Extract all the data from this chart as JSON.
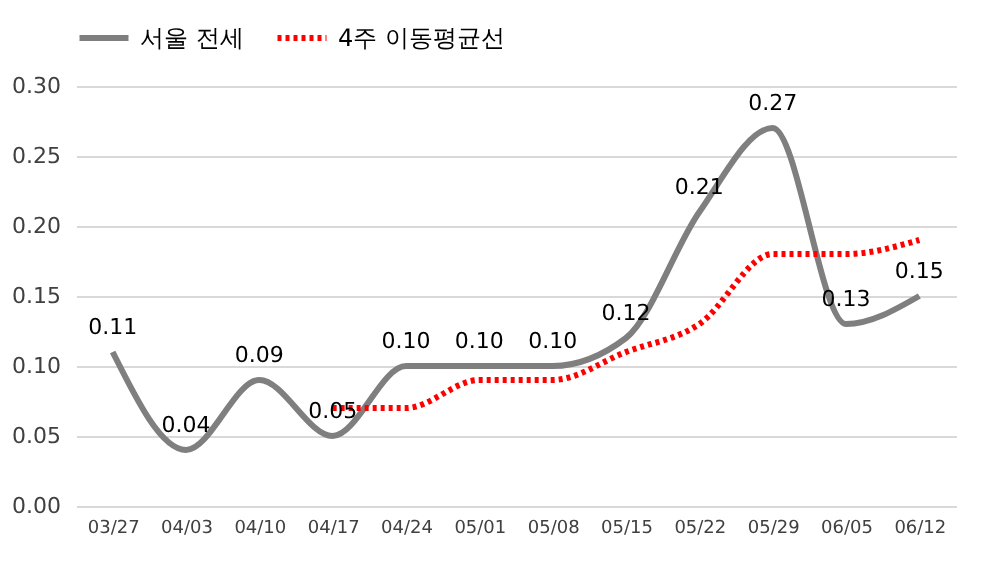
{
  "chart_data": {
    "type": "line",
    "categories": [
      "03/27",
      "04/03",
      "04/10",
      "04/17",
      "04/24",
      "05/01",
      "05/08",
      "05/15",
      "05/22",
      "05/29",
      "06/05",
      "06/12"
    ],
    "series": [
      {
        "name": "서울 전세",
        "color": "#7f7f7f",
        "line_style": "solid",
        "values": [
          0.11,
          0.04,
          0.09,
          0.05,
          0.1,
          0.1,
          0.1,
          0.12,
          0.21,
          0.27,
          0.13,
          0.15
        ],
        "value_labels": [
          "0.11",
          "0.04",
          "0.09",
          "0.05",
          "0.10",
          "0.10",
          "0.10",
          "0.12",
          "0.21",
          "0.27",
          "0.13",
          "0.15"
        ]
      },
      {
        "name": "4주 이동평균선",
        "color": "#ff0000",
        "line_style": "dotted",
        "values": [
          null,
          null,
          null,
          0.07,
          0.07,
          0.09,
          0.09,
          0.11,
          0.13,
          0.18,
          0.18,
          0.19
        ]
      }
    ],
    "ylim": [
      0,
      0.3
    ],
    "yticks": [
      {
        "value": 0,
        "label": "0.00"
      },
      {
        "value": 0.05,
        "label": "0.05"
      },
      {
        "value": 0.1,
        "label": "0.10"
      },
      {
        "value": 0.15,
        "label": "0.15"
      },
      {
        "value": 0.2,
        "label": "0.20"
      },
      {
        "value": 0.25,
        "label": "0.25"
      },
      {
        "value": 0.3,
        "label": "0.30"
      }
    ],
    "grid": "y",
    "legend": "top",
    "marker": "none"
  }
}
